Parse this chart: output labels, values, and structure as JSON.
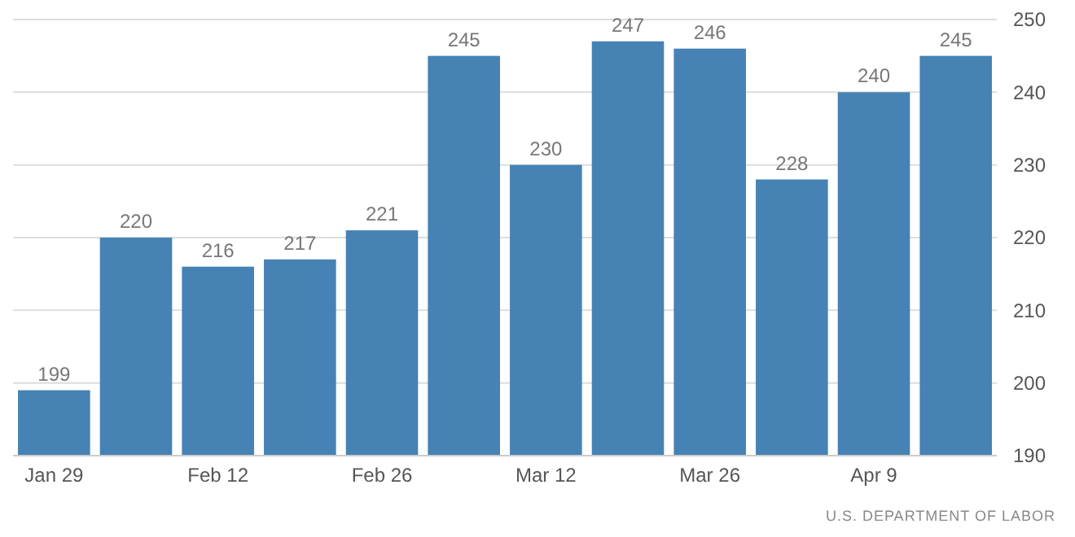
{
  "chart_data": {
    "type": "bar",
    "categories": [
      "Jan 29",
      null,
      "Feb 12",
      null,
      "Feb 26",
      null,
      "Mar 12",
      null,
      "Mar 26",
      null,
      "Apr 9",
      null
    ],
    "values": [
      199,
      220,
      216,
      217,
      221,
      245,
      230,
      247,
      246,
      228,
      240,
      245
    ],
    "color": "#4682b4",
    "ylim": [
      190,
      250
    ],
    "yticks": [
      190,
      200,
      210,
      220,
      230,
      240,
      250
    ],
    "grid": "y",
    "data_labels": true,
    "annotations": [
      "U.S. DEPARTMENT OF LABOR"
    ]
  }
}
